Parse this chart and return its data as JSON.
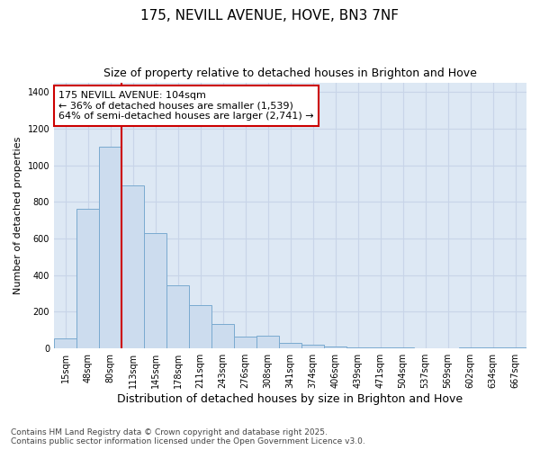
{
  "title": "175, NEVILL AVENUE, HOVE, BN3 7NF",
  "subtitle": "Size of property relative to detached houses in Brighton and Hove",
  "xlabel": "Distribution of detached houses by size in Brighton and Hove",
  "ylabel": "Number of detached properties",
  "categories": [
    "15sqm",
    "48sqm",
    "80sqm",
    "113sqm",
    "145sqm",
    "178sqm",
    "211sqm",
    "243sqm",
    "276sqm",
    "308sqm",
    "341sqm",
    "374sqm",
    "406sqm",
    "439sqm",
    "471sqm",
    "504sqm",
    "537sqm",
    "569sqm",
    "602sqm",
    "634sqm",
    "667sqm"
  ],
  "bar_values": [
    55,
    760,
    1100,
    890,
    630,
    345,
    235,
    135,
    65,
    70,
    30,
    20,
    10,
    5,
    5,
    5,
    3,
    3,
    8,
    5,
    5
  ],
  "bar_color": "#ccdcee",
  "bar_edge_color": "#7aaad0",
  "grid_color": "#c8d4e8",
  "background_color": "#dde8f4",
  "fig_background": "#ffffff",
  "vline_x": 2.5,
  "vline_color": "#cc0000",
  "annotation_text": "175 NEVILL AVENUE: 104sqm\n← 36% of detached houses are smaller (1,539)\n64% of semi-detached houses are larger (2,741) →",
  "annotation_box_facecolor": "#ffffff",
  "annotation_box_edge": "#cc0000",
  "ylim": [
    0,
    1450
  ],
  "yticks": [
    0,
    200,
    400,
    600,
    800,
    1000,
    1200,
    1400
  ],
  "footnote": "Contains HM Land Registry data © Crown copyright and database right 2025.\nContains public sector information licensed under the Open Government Licence v3.0.",
  "title_fontsize": 11,
  "subtitle_fontsize": 9,
  "xlabel_fontsize": 9,
  "ylabel_fontsize": 8,
  "tick_fontsize": 7,
  "annotation_fontsize": 8,
  "footnote_fontsize": 6.5
}
